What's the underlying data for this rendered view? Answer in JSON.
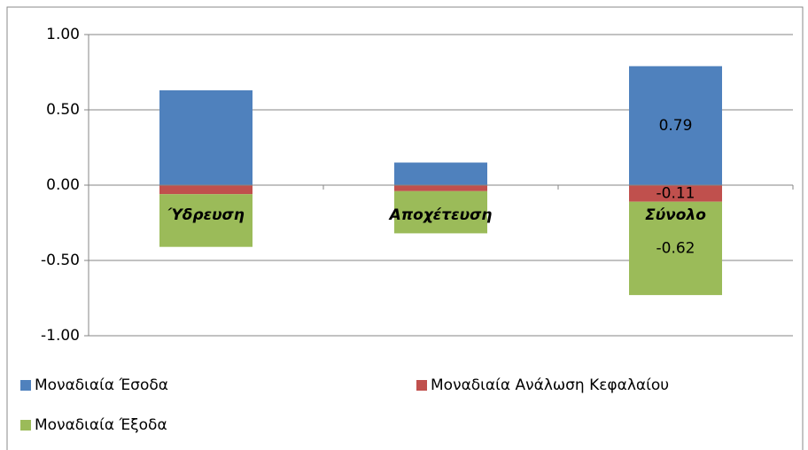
{
  "chart_data": {
    "type": "stacked_bar",
    "categories": [
      "Ύδρευση",
      "Αποχέτευση",
      "Σύνολο"
    ],
    "series": [
      {
        "name": "Μοναδιαία Έσοδα",
        "color": "#4f81bd",
        "values": [
          0.63,
          0.15,
          0.79
        ],
        "value_labels": [
          null,
          null,
          "0.79"
        ]
      },
      {
        "name": "Μοναδιαία Ανάλωση Κεφαλαίου",
        "color": "#c0504d",
        "values": [
          -0.06,
          -0.04,
          -0.11
        ],
        "value_labels": [
          null,
          null,
          "-0.11"
        ]
      },
      {
        "name": "Μοναδιαία Έξοδα",
        "color": "#9bbb59",
        "values": [
          -0.35,
          -0.28,
          -0.62
        ],
        "value_labels": [
          null,
          null,
          "-0.62"
        ]
      }
    ],
    "ylim": [
      -1,
      1
    ],
    "yticks": [
      {
        "value": -1,
        "label": "-1.00"
      },
      {
        "value": -0.5,
        "label": "-0.50"
      },
      {
        "value": 0,
        "label": "0.00"
      },
      {
        "value": 0.5,
        "label": "0.50"
      },
      {
        "value": 1,
        "label": "1.00"
      }
    ],
    "grid": true
  }
}
